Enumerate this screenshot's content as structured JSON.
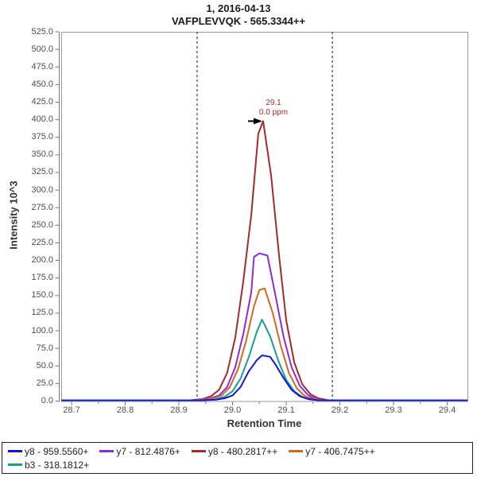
{
  "chart": {
    "title": "1, 2016-04-13",
    "subtitle": "VAFPLEVVQK - 565.3344++",
    "xlabel": "Retention Time",
    "ylabel": "Intensity 10^3",
    "annotation": {
      "line1": "29.1",
      "line2": "0.0 ppm"
    }
  },
  "chart_data": {
    "type": "line",
    "title": "1, 2016-04-13",
    "subtitle": "VAFPLEVVQK - 565.3344++",
    "xlabel": "Retention Time",
    "ylabel": "Intensity 10^3",
    "xlim": [
      28.68,
      29.44
    ],
    "ylim": [
      0,
      525
    ],
    "x_ticks": [
      28.7,
      28.8,
      28.9,
      29.0,
      29.1,
      29.2,
      29.3,
      29.4
    ],
    "y_ticks_start": 0,
    "y_ticks_end": 525,
    "y_ticks_step": 25,
    "grid": false,
    "legend_position": "bottom",
    "integration_boundaries": [
      28.934,
      29.186
    ],
    "peak_annotation": {
      "retention_time": "29.1",
      "mass_error": "0.0 ppm",
      "apex_time": 29.057,
      "apex_intensity_e3": 398
    },
    "series": [
      {
        "label": "y8 - 959.5560+",
        "color": "#1414DF",
        "points": [
          [
            28.68,
            1
          ],
          [
            28.9,
            1
          ],
          [
            28.94,
            1
          ],
          [
            28.97,
            2
          ],
          [
            28.985,
            4
          ],
          [
            29.0,
            8
          ],
          [
            29.015,
            20
          ],
          [
            29.03,
            42
          ],
          [
            29.045,
            58
          ],
          [
            29.055,
            65
          ],
          [
            29.07,
            63
          ],
          [
            29.08,
            52
          ],
          [
            29.095,
            33
          ],
          [
            29.11,
            16
          ],
          [
            29.125,
            7
          ],
          [
            29.14,
            3
          ],
          [
            29.16,
            1
          ],
          [
            29.44,
            1
          ]
        ]
      },
      {
        "label": "y7 - 812.4876+",
        "color": "#8B2BE2",
        "points": [
          [
            28.68,
            1
          ],
          [
            28.93,
            1
          ],
          [
            28.955,
            3
          ],
          [
            28.975,
            8
          ],
          [
            28.99,
            20
          ],
          [
            29.005,
            48
          ],
          [
            29.02,
            95
          ],
          [
            29.035,
            155
          ],
          [
            29.04,
            205
          ],
          [
            29.05,
            210
          ],
          [
            29.065,
            207
          ],
          [
            29.08,
            150
          ],
          [
            29.095,
            92
          ],
          [
            29.11,
            48
          ],
          [
            29.125,
            22
          ],
          [
            29.14,
            9
          ],
          [
            29.155,
            3
          ],
          [
            29.17,
            1
          ],
          [
            29.44,
            1
          ]
        ]
      },
      {
        "label": "y8 - 480.2817++",
        "color": "#A52A2A",
        "points": [
          [
            28.68,
            1
          ],
          [
            28.92,
            1
          ],
          [
            28.945,
            3
          ],
          [
            28.96,
            7
          ],
          [
            28.975,
            16
          ],
          [
            28.99,
            40
          ],
          [
            29.005,
            90
          ],
          [
            29.02,
            170
          ],
          [
            29.035,
            265
          ],
          [
            29.048,
            380
          ],
          [
            29.057,
            398
          ],
          [
            29.072,
            320
          ],
          [
            29.087,
            205
          ],
          [
            29.1,
            115
          ],
          [
            29.115,
            55
          ],
          [
            29.13,
            24
          ],
          [
            29.145,
            10
          ],
          [
            29.16,
            4
          ],
          [
            29.18,
            1
          ],
          [
            29.44,
            1
          ]
        ]
      },
      {
        "label": "y7 - 406.7475++",
        "color": "#D2691E",
        "points": [
          [
            28.68,
            1
          ],
          [
            28.93,
            1
          ],
          [
            28.96,
            3
          ],
          [
            28.98,
            8
          ],
          [
            28.995,
            20
          ],
          [
            29.01,
            45
          ],
          [
            29.025,
            85
          ],
          [
            29.04,
            135
          ],
          [
            29.05,
            158
          ],
          [
            29.06,
            160
          ],
          [
            29.075,
            125
          ],
          [
            29.09,
            78
          ],
          [
            29.105,
            40
          ],
          [
            29.12,
            18
          ],
          [
            29.135,
            7
          ],
          [
            29.15,
            3
          ],
          [
            29.17,
            1
          ],
          [
            29.44,
            1
          ]
        ]
      },
      {
        "label": "b3 - 318.1812+",
        "color": "#169E94",
        "points": [
          [
            28.68,
            1
          ],
          [
            28.94,
            1
          ],
          [
            28.965,
            2
          ],
          [
            28.985,
            6
          ],
          [
            29.0,
            14
          ],
          [
            29.015,
            32
          ],
          [
            29.03,
            62
          ],
          [
            29.045,
            98
          ],
          [
            29.055,
            116
          ],
          [
            29.07,
            92
          ],
          [
            29.085,
            58
          ],
          [
            29.1,
            30
          ],
          [
            29.115,
            14
          ],
          [
            29.13,
            6
          ],
          [
            29.145,
            2
          ],
          [
            29.165,
            1
          ],
          [
            29.44,
            1
          ]
        ]
      }
    ]
  }
}
